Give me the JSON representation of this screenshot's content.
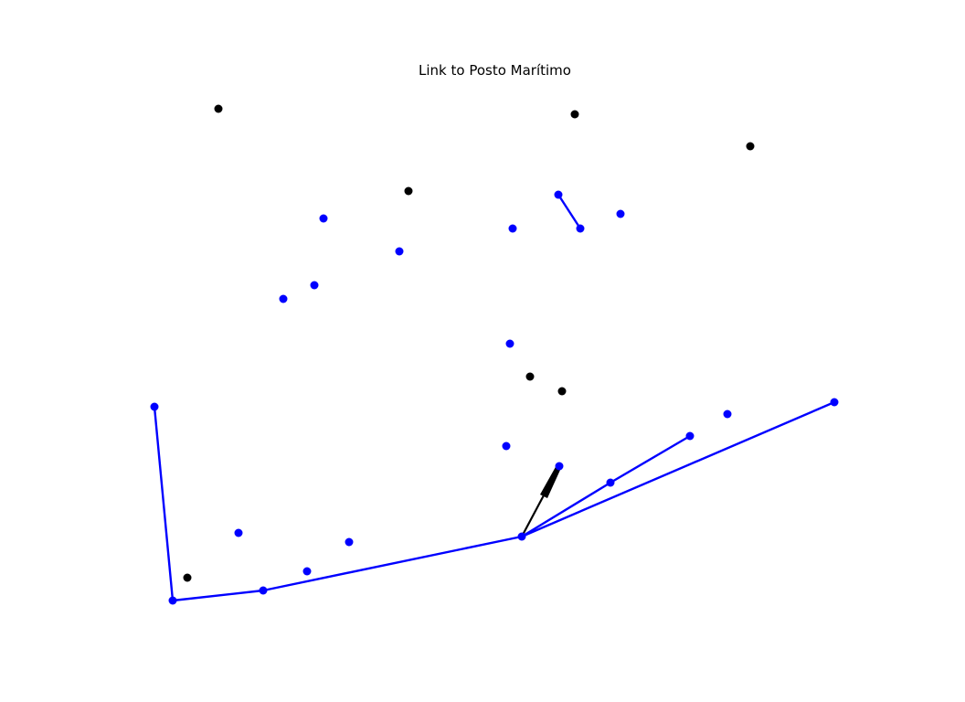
{
  "title": "Link to Posto Marítimo",
  "colors": {
    "network": "#0000ff",
    "other": "#000000",
    "highlight": "#000000",
    "background": "#ffffff"
  }
}
